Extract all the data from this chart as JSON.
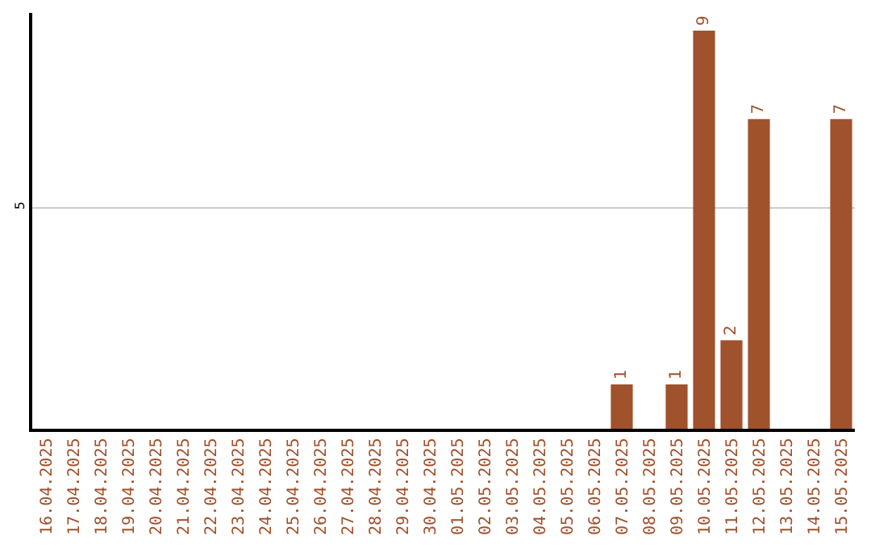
{
  "chart_data": {
    "type": "bar",
    "categories": [
      "16.04.2025",
      "17.04.2025",
      "18.04.2025",
      "19.04.2025",
      "20.04.2025",
      "21.04.2025",
      "22.04.2025",
      "23.04.2025",
      "24.04.2025",
      "25.04.2025",
      "26.04.2025",
      "27.04.2025",
      "28.04.2025",
      "29.04.2025",
      "30.04.2025",
      "01.05.2025",
      "02.05.2025",
      "03.05.2025",
      "04.05.2025",
      "05.05.2025",
      "06.05.2025",
      "07.05.2025",
      "08.05.2025",
      "09.05.2025",
      "10.05.2025",
      "11.05.2025",
      "12.05.2025",
      "13.05.2025",
      "14.05.2025",
      "15.05.2025"
    ],
    "values": [
      null,
      null,
      null,
      null,
      null,
      null,
      null,
      null,
      null,
      null,
      null,
      null,
      null,
      null,
      null,
      null,
      null,
      null,
      null,
      null,
      null,
      1,
      null,
      1,
      9,
      2,
      7,
      null,
      null,
      7
    ],
    "data_labels": true,
    "color": "#a0522d",
    "ylim": [
      0,
      9.4
    ],
    "yticks": [
      5
    ],
    "grid": "y",
    "legend": false
  }
}
